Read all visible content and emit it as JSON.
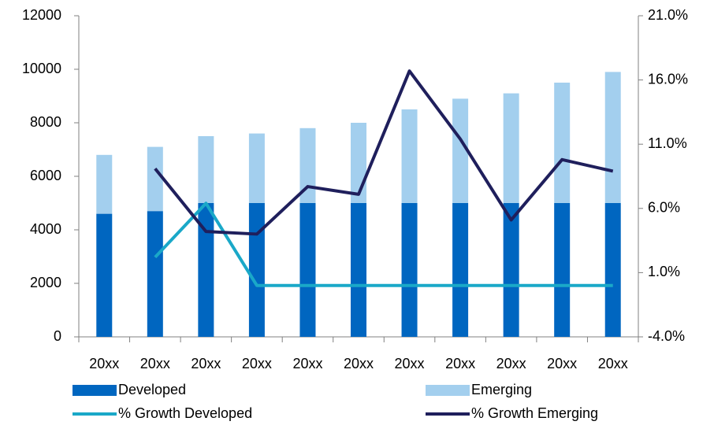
{
  "chart_data": {
    "type": "bar",
    "categories": [
      "20xx",
      "20xx",
      "20xx",
      "20xx",
      "20xx",
      "20xx",
      "20xx",
      "20xx",
      "20xx",
      "20xx",
      "20xx"
    ],
    "stacked": true,
    "series": [
      {
        "name": "Developed",
        "type": "bar",
        "color": "#0066c0",
        "values": [
          4600,
          4700,
          5000,
          5000,
          5000,
          5000,
          5000,
          5000,
          5000,
          5000,
          5000
        ]
      },
      {
        "name": "Emerging",
        "type": "bar",
        "color": "#a3cfee",
        "values": [
          2200,
          2400,
          2500,
          2600,
          2800,
          3000,
          3500,
          3900,
          4100,
          4500,
          4900
        ]
      },
      {
        "name": "% Growth Developed",
        "type": "line",
        "axis": "y2",
        "color": "#1aa8c8",
        "values": [
          null,
          2.2,
          6.4,
          0,
          0,
          0,
          0,
          0,
          0,
          0,
          0
        ]
      },
      {
        "name": "% Growth Emerging",
        "type": "line",
        "axis": "y2",
        "color": "#1f1f5c",
        "values": [
          null,
          9.1,
          4.2,
          4.0,
          7.7,
          7.1,
          16.7,
          11.4,
          5.1,
          9.8,
          8.9
        ]
      }
    ],
    "ylim": [
      0,
      12000
    ],
    "yticks": [
      0,
      2000,
      4000,
      6000,
      8000,
      10000,
      12000
    ],
    "y2lim": [
      -4,
      21
    ],
    "y2ticks": [
      {
        "value": -4,
        "label": "-4.0%"
      },
      {
        "value": 1,
        "label": "1.0%"
      },
      {
        "value": 6,
        "label": "6.0%"
      },
      {
        "value": 11,
        "label": "11.0%"
      },
      {
        "value": 16,
        "label": "16.0%"
      },
      {
        "value": 21,
        "label": "21.0%"
      }
    ],
    "legend": "bottom"
  }
}
